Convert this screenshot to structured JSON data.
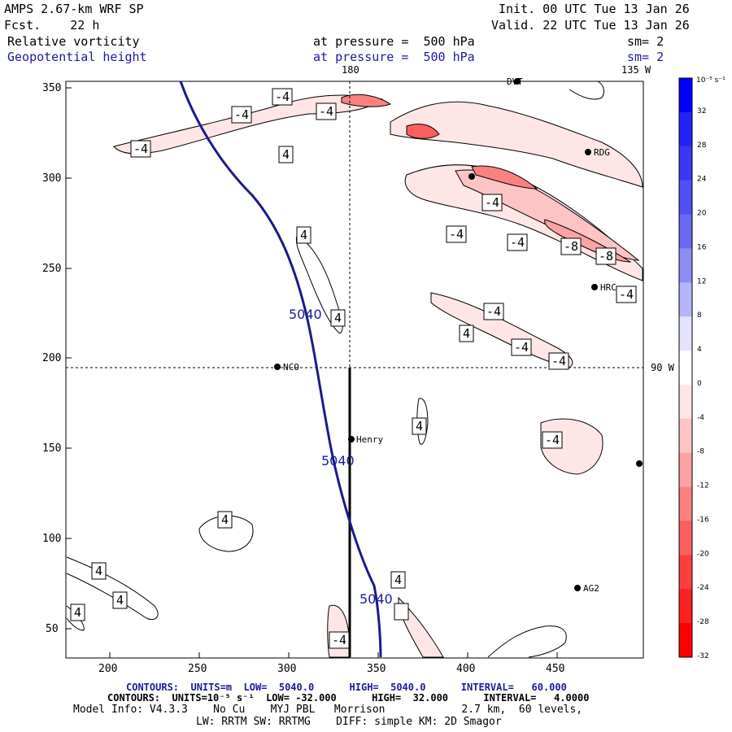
{
  "header": {
    "model": "AMPS 2.67-km WRF SP",
    "forecast": "Fcst.    22 h",
    "init": "Init. 00 UTC Tue 13 Jan 26",
    "valid": "Valid. 22 UTC Tue 13 Jan 26",
    "field1": "Relative vorticity",
    "field1_level": "at pressure =  500 hPa",
    "field1_sm": "sm= 2",
    "field2": "Geopotential height",
    "field2_level": "at pressure =  500 hPa",
    "field2_sm": "sm= 2"
  },
  "map": {
    "lon_labels": {
      "top_180": "180",
      "top_135w": "135 W",
      "right_90w": "90 W"
    },
    "x_ticks": [
      "200",
      "250",
      "300",
      "350",
      "400",
      "450"
    ],
    "y_ticks": [
      "350",
      "300",
      "250",
      "200",
      "150",
      "100",
      "50"
    ],
    "stations": [
      "NCO",
      "Henry",
      "RDG",
      "HRC",
      "AG2",
      "DVT"
    ],
    "height_labels": [
      "5040",
      "5040",
      "5040"
    ],
    "vort_labels": [
      "-4",
      "-4",
      "-4",
      "-4",
      "4",
      "-4",
      "4",
      "4",
      "-4",
      "-4",
      "-8",
      "-8",
      "-4",
      "-4",
      "4",
      "-4",
      "-4",
      "4",
      "-4",
      "4",
      "4",
      "4",
      "4",
      "4",
      "-4"
    ]
  },
  "colorbar": {
    "units": "10⁻⁵ s⁻¹",
    "labels": [
      "32",
      "28",
      "24",
      "20",
      "16",
      "12",
      "8",
      "4",
      "0",
      "-4",
      "-8",
      "-12",
      "-16",
      "-20",
      "-24",
      "-28",
      "-32"
    ],
    "colors": [
      "#0000ff",
      "#2323f7",
      "#3939f4",
      "#5050f3",
      "#6a6af2",
      "#8c8cf3",
      "#b4b4f8",
      "#e3e3fd",
      "#ffffff",
      "#ffe6e6",
      "#fcc4c4",
      "#fba2a2",
      "#fb8181",
      "#fb5f5f",
      "#fc3f3f",
      "#fd2020",
      "#ff0000"
    ]
  },
  "footer": {
    "line1": "CONTOURS:  UNITS=m  LOW=  5040.0      HIGH=  5040.0      INTERVAL=   60.000",
    "line2": "CONTOURS:  UNITS=10⁻⁵ s⁻¹  LOW= -32.000      HIGH=  32.000      INTERVAL=   4.0000",
    "line3": "Model Info: V4.3.3    No Cu    MYJ PBL   Morrison            2.7 km,  60 levels,",
    "line4": "LW: RRTM SW: RRTMG    DIFF: simple KM: 2D Smagor"
  },
  "colors": {
    "height_contour": "#1a1a8c",
    "header_blue": "#1a1aa0"
  }
}
